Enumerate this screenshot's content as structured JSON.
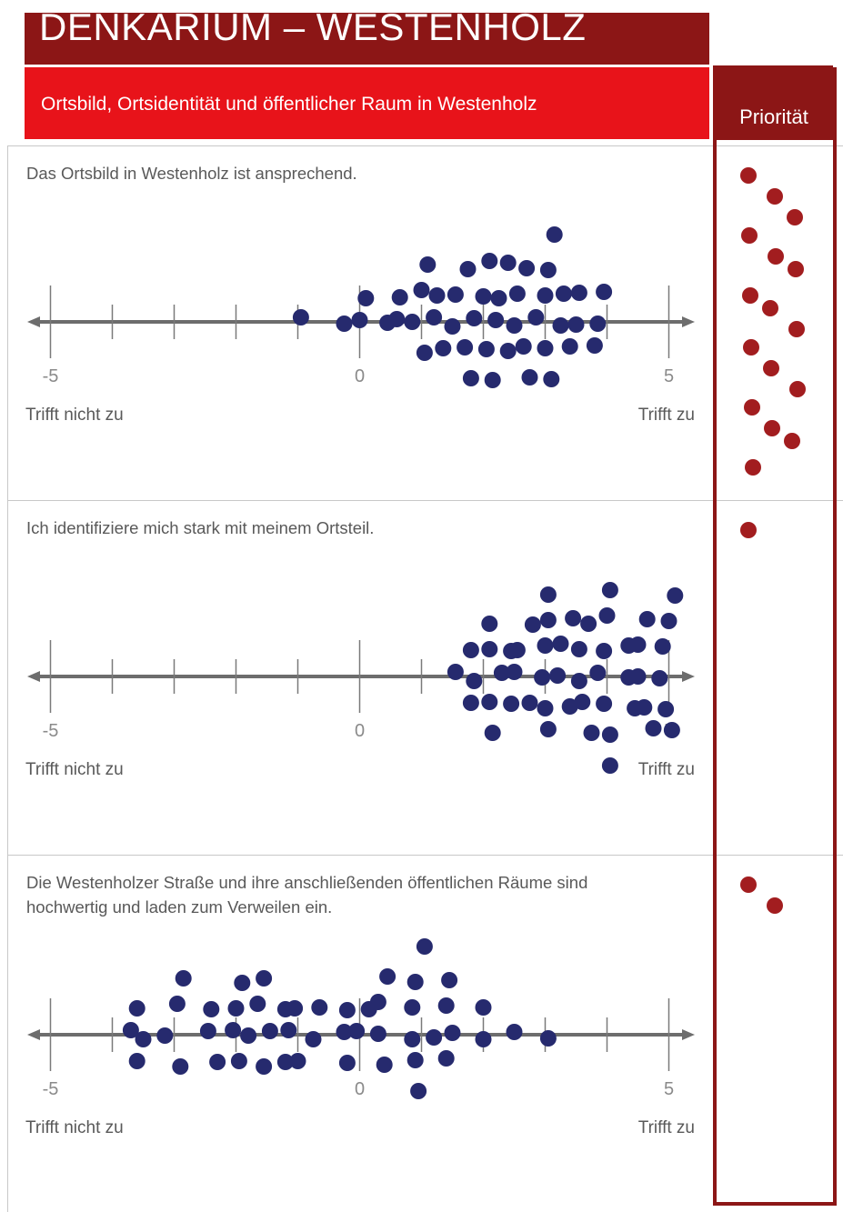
{
  "header": {
    "title": "DENKARIUM – WESTENHOLZ",
    "subtitle": "Ortsbild, Ortsidentität und öffentlicher Raum in Westenholz",
    "priority_label": "Priorität"
  },
  "colors": {
    "title_bg": "#8c1616",
    "subtitle_bg": "#e8131a",
    "response_dot": "#262a6e",
    "priority_dot": "#a21d1f",
    "axis": "#6d6d6d"
  },
  "chart_data": [
    {
      "type": "scatter",
      "statement": "Das Ortsbild in Westenholz ist ansprechend.",
      "x_range": [
        -5,
        5
      ],
      "tick_labels": [
        "-5",
        "0",
        "5"
      ],
      "min_label": "Trifft nicht zu",
      "max_label": "Trifft zu",
      "responses": [
        -0.95,
        -0.25,
        0,
        0.1,
        0.45,
        0.6,
        0.65,
        0.85,
        1,
        1.05,
        1.1,
        1.2,
        1.25,
        1.35,
        1.5,
        1.55,
        1.7,
        1.75,
        1.8,
        1.85,
        2,
        2.05,
        2.1,
        2.15,
        2.2,
        2.25,
        2.4,
        2.4,
        2.5,
        2.55,
        2.65,
        2.7,
        2.75,
        2.85,
        3,
        3,
        3.05,
        3.1,
        3.15,
        3.25,
        3.3,
        3.4,
        3.5,
        3.55,
        3.8,
        3.85,
        3.95
      ],
      "priority_count": 16
    },
    {
      "type": "scatter",
      "statement": "Ich identifiziere mich stark mit meinem Ortsteil.",
      "x_range": [
        -5,
        5
      ],
      "tick_labels": [
        "-5",
        "0",
        "5"
      ],
      "min_label": "Trifft nicht zu",
      "max_label": "Trifft zu",
      "responses": [
        1.55,
        1.8,
        1.8,
        1.85,
        2.1,
        2.1,
        2.1,
        2.15,
        2.3,
        2.45,
        2.45,
        2.5,
        2.55,
        2.75,
        2.8,
        2.95,
        3,
        3,
        3.05,
        3.05,
        3.05,
        3.2,
        3.25,
        3.4,
        3.45,
        3.55,
        3.55,
        3.6,
        3.7,
        3.75,
        3.85,
        3.95,
        3.95,
        4,
        4.05,
        4.05,
        4.05,
        4.35,
        4.35,
        4.45,
        4.5,
        4.5,
        4.6,
        4.65,
        4.75,
        4.85,
        4.9,
        4.95,
        5,
        5.05,
        5.1
      ],
      "priority_count": 1
    },
    {
      "type": "scatter",
      "statement": "Die Westenholzer Straße und ihre anschließenden öffentlichen Räume sind hochwertig und laden zum Verweilen ein.",
      "x_range": [
        -5,
        5
      ],
      "tick_labels": [
        "-5",
        "0",
        "5"
      ],
      "min_label": "Trifft nicht zu",
      "max_label": "Trifft zu",
      "responses": [
        -3.7,
        -3.6,
        -3.6,
        -3.5,
        -3.15,
        -2.95,
        -2.9,
        -2.85,
        -2.45,
        -2.4,
        -2.3,
        -2.05,
        -2,
        -1.95,
        -1.9,
        -1.8,
        -1.65,
        -1.55,
        -1.55,
        -1.45,
        -1.2,
        -1.2,
        -1.15,
        -1.05,
        -1,
        -0.75,
        -0.65,
        -0.25,
        -0.2,
        -0.2,
        -0.05,
        0.15,
        0.3,
        0.3,
        0.4,
        0.45,
        0.85,
        0.85,
        0.9,
        0.9,
        0.95,
        1.05,
        1.2,
        1.4,
        1.4,
        1.45,
        1.5,
        2,
        2,
        2.5,
        3.05
      ],
      "priority_count": 2
    }
  ]
}
